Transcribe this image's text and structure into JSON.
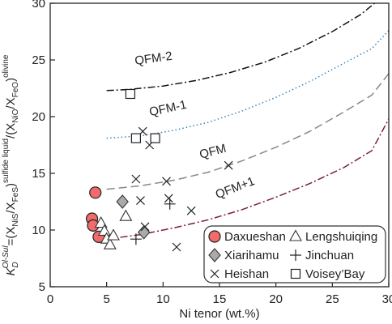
{
  "chart_data": {
    "type": "scatter",
    "xlabel": "Ni tenor (wt.%)",
    "ylabel": {
      "k": "K",
      "k_sub": "D",
      "k_sup": "Ol-Sul",
      "eq": "=(X",
      "nis_sub": "NiS",
      "slash1": "/X",
      "fes_sub": "FeS",
      "close1": ")",
      "sulfide_sup": "sulfide liquid",
      "mid": "/(X",
      "nio_sub": "NiO",
      "slash2": "/X",
      "feo_sub": "FeO",
      "close2": ")",
      "olivine_sup": "olivine"
    },
    "xlim": [
      0,
      30
    ],
    "ylim": [
      5,
      30
    ],
    "xticks": [
      "0",
      "5",
      "10",
      "15",
      "20",
      "25",
      "30"
    ],
    "yticks": [
      "5",
      "10",
      "15",
      "20",
      "25",
      "30"
    ],
    "curves": [
      {
        "label": "QFM-2",
        "color": "#111111",
        "dash": "dashdot",
        "points": [
          [
            5,
            22.3
          ],
          [
            7,
            22.4
          ],
          [
            10,
            22.7
          ],
          [
            13,
            23.2
          ],
          [
            16,
            23.9
          ],
          [
            19,
            24.8
          ],
          [
            22,
            26.0
          ],
          [
            25,
            27.5
          ],
          [
            27.5,
            29.0
          ],
          [
            29,
            30.2
          ]
        ]
      },
      {
        "label": "QFM-1",
        "color": "#3a86c0",
        "dash": "dot",
        "points": [
          [
            5,
            18.1
          ],
          [
            8,
            18.3
          ],
          [
            11,
            18.8
          ],
          [
            14,
            19.5
          ],
          [
            17,
            20.5
          ],
          [
            20,
            21.7
          ],
          [
            23,
            23.1
          ],
          [
            26,
            24.7
          ],
          [
            28.5,
            26.0
          ],
          [
            30,
            27.6
          ]
        ]
      },
      {
        "label": "QFM",
        "color": "#888888",
        "dash": "dash",
        "points": [
          [
            5,
            13.6
          ],
          [
            8,
            13.9
          ],
          [
            11,
            14.4
          ],
          [
            14,
            15.1
          ],
          [
            17,
            16.1
          ],
          [
            20,
            17.3
          ],
          [
            23,
            18.7
          ],
          [
            26,
            20.4
          ],
          [
            28.5,
            21.9
          ],
          [
            30,
            23.8
          ]
        ]
      },
      {
        "label": "QFM+1",
        "color": "#7a1f3d",
        "dash": "dashdot",
        "points": [
          [
            5,
            9.2
          ],
          [
            8,
            9.6
          ],
          [
            11,
            10.2
          ],
          [
            14,
            10.9
          ],
          [
            17,
            11.8
          ],
          [
            20,
            12.9
          ],
          [
            23,
            14.1
          ],
          [
            26,
            15.5
          ],
          [
            28.5,
            17.0
          ],
          [
            30,
            19.8
          ]
        ]
      }
    ],
    "series": [
      {
        "name": "Daxueshan",
        "marker": "circle",
        "fill": "#f26b6b",
        "stroke": "#222222",
        "points": [
          [
            4.0,
            13.3
          ],
          [
            3.7,
            11.0
          ],
          [
            3.8,
            10.4
          ],
          [
            4.3,
            9.4
          ]
        ]
      },
      {
        "name": "Lengshuiqing",
        "marker": "triangle",
        "fill": "#ffffff",
        "stroke": "#333333",
        "points": [
          [
            6.7,
            11.2
          ],
          [
            4.5,
            10.6
          ],
          [
            4.8,
            9.9
          ],
          [
            5.0,
            9.2
          ],
          [
            5.3,
            8.7
          ],
          [
            5.6,
            9.5
          ]
        ]
      },
      {
        "name": "Xiarihamu",
        "marker": "diamond",
        "fill": "#aaaaaa",
        "stroke": "#333333",
        "points": [
          [
            6.4,
            12.5
          ],
          [
            8.3,
            9.8
          ]
        ]
      },
      {
        "name": "Jinchuan",
        "marker": "plus",
        "fill": "none",
        "stroke": "#222222",
        "points": [
          [
            10.6,
            12.3
          ],
          [
            7.6,
            9.2
          ]
        ]
      },
      {
        "name": "Heishan",
        "marker": "x",
        "fill": "none",
        "stroke": "#222222",
        "points": [
          [
            8.2,
            18.7
          ],
          [
            8.8,
            17.5
          ],
          [
            7.6,
            14.5
          ],
          [
            10.3,
            14.3
          ],
          [
            15.8,
            15.7
          ],
          [
            8.0,
            12.6
          ],
          [
            10.5,
            12.8
          ],
          [
            12.5,
            11.7
          ],
          [
            8.4,
            10.3
          ],
          [
            11.2,
            8.5
          ]
        ]
      },
      {
        "name": "Voisey’Bay",
        "marker": "square",
        "fill": "#ffffff",
        "stroke": "#222222",
        "points": [
          [
            7.1,
            22.0
          ],
          [
            7.6,
            18.1
          ],
          [
            9.3,
            18.1
          ]
        ]
      }
    ],
    "legend": {
      "placement": "bottom-right",
      "rows": [
        [
          "Daxueshan",
          "Lengshuiqing"
        ],
        [
          "Xiarihamu",
          "Jinchuan"
        ],
        [
          "Heishan",
          "Voisey’Bay"
        ]
      ]
    },
    "grid": false
  }
}
